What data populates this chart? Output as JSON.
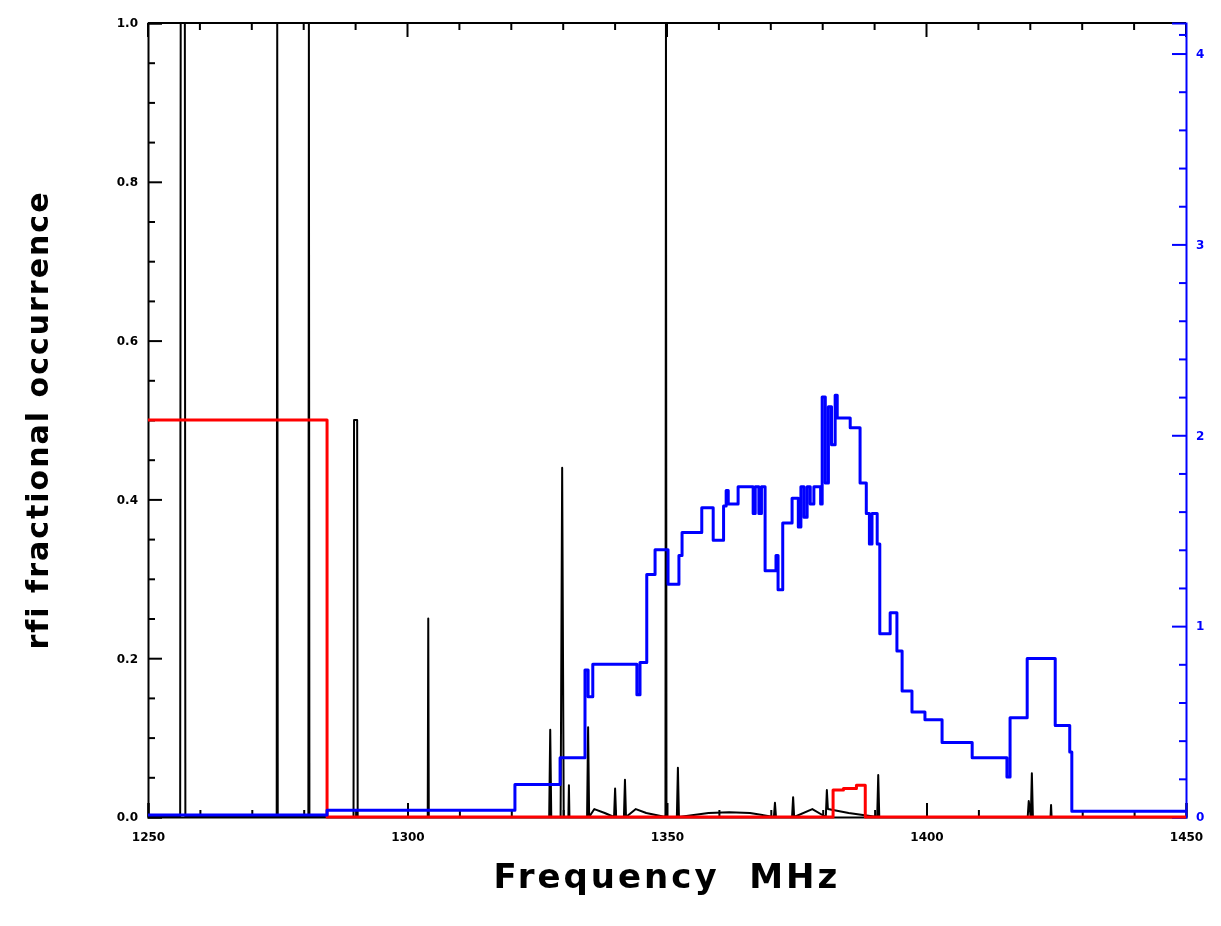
{
  "chart_data": {
    "type": "step",
    "xlabel": "Frequency  MHz",
    "ylabel": "rfi fractional occurrence",
    "xlim": [
      1250,
      1450
    ],
    "xticks": [
      1250,
      {
        "value": 1260,
        "label": null
      },
      {
        "value": 1270,
        "label": null
      },
      {
        "value": 1280,
        "label": null
      },
      {
        "value": 1290,
        "label": null
      },
      1300,
      {
        "value": 1310,
        "label": null
      },
      {
        "value": 1320,
        "label": null
      },
      {
        "value": 1330,
        "label": null
      },
      {
        "value": 1340,
        "label": null
      },
      1350,
      {
        "value": 1360,
        "label": null
      },
      {
        "value": 1370,
        "label": null
      },
      {
        "value": 1380,
        "label": null
      },
      {
        "value": 1390,
        "label": null
      },
      1400,
      {
        "value": 1410,
        "label": null
      },
      {
        "value": 1420,
        "label": null
      },
      {
        "value": 1430,
        "label": null
      },
      {
        "value": 1440,
        "label": null
      },
      1450
    ],
    "ylim": [
      0,
      1
    ],
    "yticks": [
      {
        "value": 0,
        "label": "0.0"
      },
      {
        "value": 0.05,
        "label": null
      },
      {
        "value": 0.1,
        "label": null
      },
      {
        "value": 0.15,
        "label": null
      },
      {
        "value": 0.2,
        "label": "0.2"
      },
      {
        "value": 0.25,
        "label": null
      },
      {
        "value": 0.3,
        "label": null
      },
      {
        "value": 0.35,
        "label": null
      },
      {
        "value": 0.4,
        "label": "0.4"
      },
      {
        "value": 0.45,
        "label": null
      },
      {
        "value": 0.5,
        "label": null
      },
      {
        "value": 0.55,
        "label": null
      },
      {
        "value": 0.6,
        "label": "0.6"
      },
      {
        "value": 0.65,
        "label": null
      },
      {
        "value": 0.7,
        "label": null
      },
      {
        "value": 0.75,
        "label": null
      },
      {
        "value": 0.8,
        "label": "0.8"
      },
      {
        "value": 0.85,
        "label": null
      },
      {
        "value": 0.9,
        "label": null
      },
      {
        "value": 0.95,
        "label": null
      },
      {
        "value": 1,
        "label": "1.0"
      }
    ],
    "y2lim": [
      0,
      4.16
    ],
    "y2ticks": [
      0,
      {
        "value": 0.2,
        "label": null
      },
      {
        "value": 0.4,
        "label": null
      },
      {
        "value": 0.6,
        "label": null
      },
      {
        "value": 0.8,
        "label": null
      },
      1,
      {
        "value": 1.2,
        "label": null
      },
      {
        "value": 1.4,
        "label": null
      },
      {
        "value": 1.6,
        "label": null
      },
      {
        "value": 1.8,
        "label": null
      },
      2,
      {
        "value": 2.2,
        "label": null
      },
      {
        "value": 2.4,
        "label": null
      },
      {
        "value": 2.6,
        "label": null
      },
      {
        "value": 2.8,
        "label": null
      },
      3,
      {
        "value": 3.2,
        "label": null
      },
      {
        "value": 3.4,
        "label": null
      },
      {
        "value": 3.6,
        "label": null
      },
      {
        "value": 3.8,
        "label": null
      },
      4,
      {
        "value": 4.1,
        "label": null
      }
    ],
    "series": [
      {
        "type": "line",
        "color": "#000000",
        "x": [
          1250,
          1256.2,
          1256.3,
          1257.1,
          1257.2,
          1274.8,
          1274.9,
          1275.0,
          1280.9,
          1281.0,
          1281.1,
          1289.6,
          1289.7,
          1290.3,
          1290.4,
          1303.9,
          1304.0,
          1304.1,
          1327.3,
          1327.5,
          1327.7,
          1329.5,
          1329.8,
          1330.1,
          1331.0,
          1331.1,
          1331.2,
          1334.6,
          1334.8,
          1335.0,
          1336,
          1338,
          1339.8,
          1340.0,
          1340.2,
          1341.7,
          1341.9,
          1342.1,
          1344,
          1346,
          1349.7,
          1349.8,
          1349.9,
          1351.9,
          1352.1,
          1352.3,
          1358,
          1362,
          1366,
          1370.6,
          1370.8,
          1371.0,
          1374.1,
          1374.3,
          1374.5,
          1378,
          1380.6,
          1380.8,
          1381.0,
          1385,
          1390.5,
          1390.7,
          1390.9,
          1419.5,
          1419.7,
          1420.1,
          1420.3,
          1420.5,
          1423.9,
          1424.0,
          1424.1,
          1450
        ],
        "values": [
          0,
          0,
          1,
          1,
          0,
          0,
          1,
          0,
          0,
          1,
          0,
          0,
          0.5,
          0.5,
          0,
          0,
          0.25,
          0,
          0,
          0.11,
          0,
          0,
          0.44,
          0,
          0,
          0.04,
          0,
          0,
          0.113,
          0,
          0.01,
          0.005,
          0,
          0.036,
          0,
          0,
          0.047,
          0,
          0.01,
          0.005,
          0,
          1,
          0,
          0,
          0.062,
          0,
          0.005,
          0.006,
          0.005,
          0,
          0.018,
          0,
          0,
          0.025,
          0,
          0.01,
          0,
          0.034,
          0.01,
          0.005,
          0,
          0.053,
          0,
          0,
          0.02,
          0,
          0.055,
          0,
          0,
          0.015,
          0,
          0
        ]
      },
      {
        "color": "#ff0000",
        "x": [
          1250,
          1284.5,
          1382,
          1384,
          1386.5,
          1388.2,
          1450
        ],
        "values": [
          0.5,
          0,
          0.034,
          0.036,
          0.04,
          0,
          0
        ]
      },
      {
        "axis": "y2",
        "color": "#0000ff",
        "x": [
          1250,
          1284.5,
          1320.7,
          1329.4,
          1334.2,
          1334.8,
          1335.7,
          1344.2,
          1344.8,
          1346.1,
          1347.7,
          1350.2,
          1352.3,
          1352.9,
          1356.7,
          1358.9,
          1360.9,
          1361.4,
          1361.8,
          1363.7,
          1366.6,
          1367.0,
          1367.7,
          1368.2,
          1368.9,
          1371.0,
          1371.4,
          1372.3,
          1374.1,
          1375.3,
          1375.8,
          1376.4,
          1377.0,
          1377.6,
          1378.3,
          1379.6,
          1379.9,
          1380.5,
          1381.1,
          1381.7,
          1382.4,
          1382.8,
          1385.3,
          1387.2,
          1388.4,
          1389.0,
          1389.5,
          1390.5,
          1391.0,
          1393.0,
          1394.3,
          1395.3,
          1397.2,
          1399.7,
          1403.0,
          1408.8,
          1415.5,
          1416.1,
          1419.4,
          1424.8,
          1427.6,
          1428.0,
          1450
        ],
        "values": [
          0.01,
          0.035,
          0.17,
          0.31,
          0.77,
          0.63,
          0.8,
          0.64,
          0.81,
          1.27,
          1.4,
          1.22,
          1.37,
          1.49,
          1.62,
          1.45,
          1.63,
          1.71,
          1.64,
          1.73,
          1.59,
          1.73,
          1.59,
          1.73,
          1.29,
          1.37,
          1.19,
          1.54,
          1.67,
          1.52,
          1.73,
          1.57,
          1.73,
          1.64,
          1.73,
          1.64,
          2.2,
          1.75,
          2.15,
          1.95,
          2.21,
          2.09,
          2.04,
          1.75,
          1.59,
          1.43,
          1.59,
          1.43,
          0.96,
          1.07,
          0.87,
          0.66,
          0.55,
          0.51,
          0.39,
          0.31,
          0.21,
          0.52,
          0.83,
          0.48,
          0.34,
          0.03,
          0.03
        ]
      }
    ]
  }
}
